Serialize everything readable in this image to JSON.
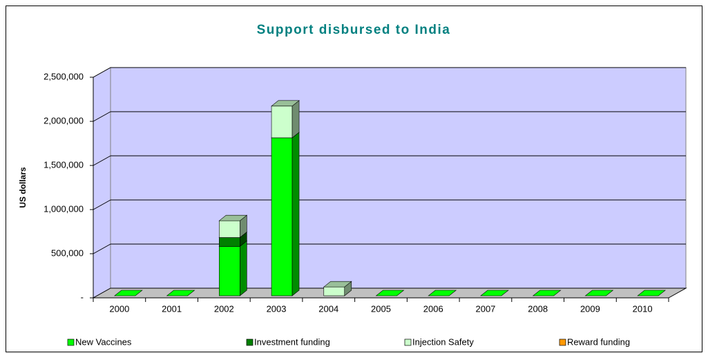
{
  "chart_data": {
    "type": "bar3d_stacked",
    "title": "Support disbursed to India",
    "y_label": "US dollars",
    "categories": [
      "2000",
      "2001",
      "2002",
      "2003",
      "2004",
      "2005",
      "2006",
      "2007",
      "2008",
      "2009",
      "2010"
    ],
    "series": [
      {
        "name": "New Vaccines",
        "color": "#00ff00",
        "values": [
          0,
          0,
          560000,
          1790000,
          0,
          0,
          0,
          0,
          0,
          0,
          0
        ]
      },
      {
        "name": "Investment funding",
        "color": "#008000",
        "values": [
          0,
          0,
          100000,
          0,
          0,
          0,
          0,
          0,
          0,
          0,
          0
        ]
      },
      {
        "name": "Injection Safety",
        "color": "#ccffcc",
        "values": [
          0,
          0,
          190000,
          360000,
          100000,
          0,
          0,
          0,
          0,
          0,
          0
        ]
      },
      {
        "name": "Reward funding",
        "color": "#ff9900",
        "values": [
          0,
          0,
          0,
          0,
          0,
          0,
          0,
          0,
          0,
          0,
          0
        ]
      }
    ],
    "ylim": [
      0,
      2500000
    ],
    "yticks": [
      {
        "value": 0,
        "label": "-"
      },
      {
        "value": 500000,
        "label": "500,000"
      },
      {
        "value": 1000000,
        "label": "1,000,000"
      },
      {
        "value": 1500000,
        "label": "1,500,000"
      },
      {
        "value": 2000000,
        "label": "2,000,000"
      },
      {
        "value": 2500000,
        "label": "2,500,000"
      }
    ],
    "grid": true,
    "wall_color": "#ccccff",
    "legend": "bottom"
  }
}
